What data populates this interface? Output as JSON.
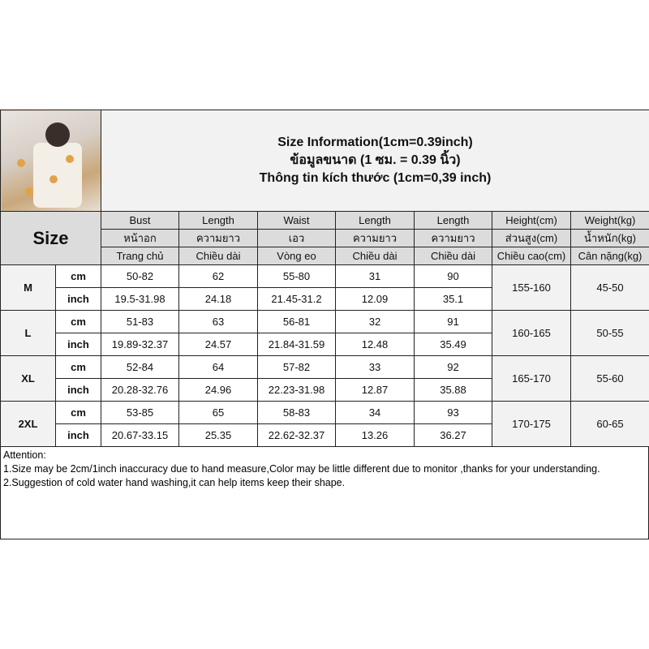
{
  "title": {
    "en": "Size Information(1cm=0.39inch)",
    "th": "ข้อมูลขนาด (1 ซม. = 0.39 นิ้ว)",
    "vi": "Thông tin kích thước (1cm=0,39 inch)"
  },
  "size_label": "Size",
  "columns": [
    {
      "en": "Bust",
      "th": "หน้าอก",
      "vi": "Trang chủ"
    },
    {
      "en": "Length",
      "th": "ความยาว",
      "vi": "Chiều dài"
    },
    {
      "en": "Waist",
      "th": "เอว",
      "vi": "Vòng eo"
    },
    {
      "en": "Length",
      "th": "ความยาว",
      "vi": "Chiều dài"
    },
    {
      "en": "Length",
      "th": "ความยาว",
      "vi": "Chiều dài"
    },
    {
      "en": "Height(cm)",
      "th": "ส่วนสูง(cm)",
      "vi": "Chiều cao(cm)"
    },
    {
      "en": "Weight(kg)",
      "th": "น้ำหนัก(kg)",
      "vi": "Cân nặng(kg)"
    }
  ],
  "units": {
    "cm": "cm",
    "inch": "inch"
  },
  "rows": [
    {
      "size": "M",
      "cm": [
        "50-82",
        "62",
        "55-80",
        "31",
        "90"
      ],
      "inch": [
        "19.5-31.98",
        "24.18",
        "21.45-31.2",
        "12.09",
        "35.1"
      ],
      "height": "155-160",
      "weight": "45-50"
    },
    {
      "size": "L",
      "cm": [
        "51-83",
        "63",
        "56-81",
        "32",
        "91"
      ],
      "inch": [
        "19.89-32.37",
        "24.57",
        "21.84-31.59",
        "12.48",
        "35.49"
      ],
      "height": "160-165",
      "weight": "50-55"
    },
    {
      "size": "XL",
      "cm": [
        "52-84",
        "64",
        "57-82",
        "33",
        "92"
      ],
      "inch": [
        "20.28-32.76",
        "24.96",
        "22.23-31.98",
        "12.87",
        "35.88"
      ],
      "height": "165-170",
      "weight": "55-60"
    },
    {
      "size": "2XL",
      "cm": [
        "53-85",
        "65",
        "58-83",
        "34",
        "93"
      ],
      "inch": [
        "20.67-33.15",
        "25.35",
        "22.62-32.37",
        "13.26",
        "36.27"
      ],
      "height": "170-175",
      "weight": "60-65"
    }
  ],
  "attention": {
    "heading": "Attention:",
    "notes": [
      "1.Size may be 2cm/1inch inaccuracy due to hand measure,Color may be little different due to monitor ,thanks for your understanding.",
      "2.Suggestion of cold water hand washing,it can help items keep their shape."
    ]
  }
}
